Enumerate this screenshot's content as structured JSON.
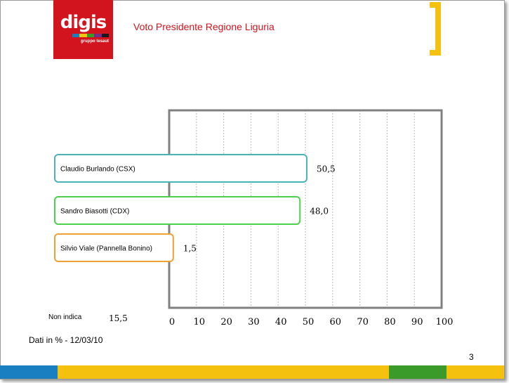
{
  "header": {
    "logo_text": "digis",
    "logo_subtext": "gruppo tesaut",
    "title": "Voto Presidente Regione Liguria"
  },
  "colors": {
    "brand_red": "#d2141e",
    "accent_yellow": "#f4c20e",
    "blue": "#1a7fc1",
    "green": "#3a9a2a",
    "grid_frame": "#808080",
    "series_colors": [
      "#4bb3b6",
      "#4bd14b",
      "#f0a030"
    ]
  },
  "chart_data": {
    "type": "bar",
    "orientation": "horizontal",
    "categories": [
      "Claudio Burlando (CSX)",
      "Sandro Biasotti (CDX)",
      "Silvio Viale (Pannella Bonino)"
    ],
    "values": [
      50.5,
      48.0,
      1.5
    ],
    "value_labels": [
      "50,5",
      "48,0",
      "1,5"
    ],
    "xlim": [
      0,
      100
    ],
    "xticks": [
      0,
      10,
      20,
      30,
      40,
      50,
      60,
      70,
      80,
      90,
      100
    ],
    "xtick_labels": [
      "0",
      "10",
      "20",
      "30",
      "40",
      "50",
      "60",
      "70",
      "80",
      "90",
      "100"
    ],
    "grid": true,
    "extra_note": {
      "label": "Non indica",
      "value": "15,5"
    }
  },
  "footer": {
    "note": "Dati in % - 12/03/10",
    "page_number": "3",
    "bar_colors": [
      "#1a7fc1",
      "#f4c20e",
      "#3a9a2a",
      "#f4c20e"
    ]
  }
}
